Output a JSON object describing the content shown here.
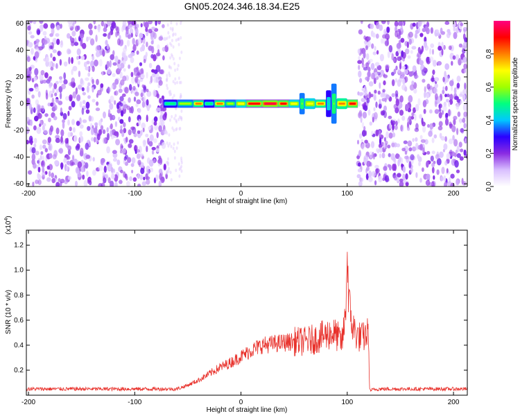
{
  "title": "GN05.2024.346.18.34.E25",
  "chart_data": [
    {
      "type": "heatmap",
      "xlabel": "Height of straight line (km)",
      "ylabel": "Frequency (Hz)",
      "xlim": [
        -202,
        213
      ],
      "ylim": [
        -62,
        62
      ],
      "xticks": [
        -200,
        -100,
        0,
        100,
        200
      ],
      "xtick_labels": [
        "-200",
        "-100",
        "0",
        "100",
        "200"
      ],
      "yticks": [
        -60,
        -40,
        -20,
        0,
        20,
        40,
        60
      ],
      "ytick_labels": [
        "-60",
        "-40",
        "-20",
        "0",
        "20",
        "40",
        "60"
      ],
      "noise_regions_km": [
        [
          -202,
          -70
        ],
        [
          110,
          213
        ]
      ],
      "signal_band": {
        "x": [
          -73,
          -60,
          -45,
          -35,
          -25,
          -15,
          -5,
          5,
          20,
          35,
          45,
          55,
          60,
          70,
          80,
          85,
          90,
          100,
          110
        ],
        "freq_halfwidth": [
          3,
          3,
          2.5,
          3,
          2.5,
          3,
          3,
          2.5,
          2.5,
          2.5,
          3,
          8,
          4,
          3,
          10,
          15,
          4,
          3,
          3
        ],
        "amplitude": [
          0.5,
          0.6,
          0.8,
          0.5,
          0.8,
          0.6,
          0.7,
          0.9,
          0.95,
          0.9,
          0.7,
          0.6,
          0.7,
          0.8,
          0.5,
          0.6,
          0.8,
          0.9,
          0.9
        ]
      },
      "colorbar": {
        "label": "Normalized spectral amplitude",
        "range": [
          0.0,
          1.0
        ],
        "ticks": [
          0.0,
          0.2,
          0.4,
          0.6,
          0.8
        ],
        "tick_labels": [
          "0.0",
          "0.2",
          "0.4",
          "0.6",
          "0.8"
        ],
        "colors": [
          "#ffffff",
          "#d9bfff",
          "#8a2be2",
          "#2a00ff",
          "#00c8ff",
          "#00ff80",
          "#a0ff00",
          "#ffff00",
          "#ff8000",
          "#ff0000",
          "#ff0080"
        ]
      }
    },
    {
      "type": "line",
      "xlabel": "Height of straight line (km)",
      "ylabel": "SNR (10 * v/v)",
      "multiplier": "(x10",
      "multiplier_exp": "4",
      "multiplier_close": ")",
      "xlim": [
        -202,
        213
      ],
      "ylim": [
        0,
        1.32
      ],
      "xticks": [
        -200,
        -100,
        0,
        100,
        200
      ],
      "xtick_labels": [
        "-200",
        "-100",
        "0",
        "100",
        "200"
      ],
      "yticks": [
        0.2,
        0.4,
        0.6,
        0.8,
        1.0,
        1.2
      ],
      "ytick_labels": [
        "0.2",
        "0.4",
        "0.6",
        "0.8",
        "1.0",
        "1.2"
      ],
      "series": [
        {
          "color": "#e8302a",
          "x": [
            -202,
            -180,
            -160,
            -140,
            -120,
            -100,
            -80,
            -60,
            -50,
            -40,
            -30,
            -20,
            -10,
            0,
            10,
            20,
            30,
            40,
            50,
            60,
            70,
            80,
            85,
            90,
            95,
            98,
            100,
            102,
            105,
            110,
            115,
            120,
            121,
            130,
            160,
            190,
            213
          ],
          "y": [
            0.05,
            0.05,
            0.05,
            0.05,
            0.05,
            0.05,
            0.05,
            0.05,
            0.08,
            0.12,
            0.17,
            0.22,
            0.26,
            0.31,
            0.36,
            0.4,
            0.41,
            0.42,
            0.43,
            0.43,
            0.45,
            0.48,
            0.5,
            0.48,
            0.42,
            0.6,
            1.1,
            0.7,
            0.55,
            0.47,
            0.46,
            0.5,
            0.04,
            0.05,
            0.05,
            0.05,
            0.05
          ]
        }
      ]
    }
  ]
}
